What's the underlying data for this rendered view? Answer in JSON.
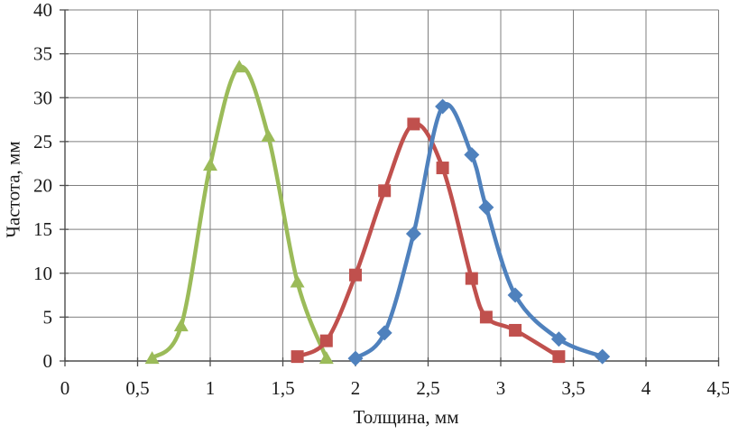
{
  "chart_data": {
    "type": "line",
    "title": "",
    "xlabel": "Толщина, мм",
    "ylabel": "Частота, мм",
    "xlim": [
      0,
      4.5
    ],
    "ylim": [
      0,
      40
    ],
    "grid": true,
    "legend_position": "none",
    "x_ticks": [
      0,
      0.5,
      1,
      1.5,
      2,
      2.5,
      3,
      3.5,
      4,
      4.5
    ],
    "x_tick_labels": [
      "0",
      "0,5",
      "1",
      "1,5",
      "2",
      "2,5",
      "3",
      "3,5",
      "4",
      "4,5"
    ],
    "y_ticks": [
      0,
      5,
      10,
      15,
      20,
      25,
      30,
      35,
      40
    ],
    "y_tick_labels": [
      "0",
      "5",
      "10",
      "15",
      "20",
      "25",
      "30",
      "35",
      "40"
    ],
    "colors": {
      "grid": "#7f7f7f",
      "axis": "#4d4d4d",
      "text": "#1a1a1a",
      "series_green": "#9BBB59",
      "series_red": "#C0504D",
      "series_blue": "#4F81BD"
    },
    "series": [
      {
        "name": "series-green-triangle",
        "marker": "triangle",
        "color": "#9BBB59",
        "smooth": true,
        "points": [
          [
            0.6,
            0.3
          ],
          [
            0.8,
            4.0
          ],
          [
            1.0,
            22.3
          ],
          [
            1.2,
            33.5
          ],
          [
            1.4,
            25.6
          ],
          [
            1.6,
            9.0
          ],
          [
            1.8,
            0.3
          ]
        ]
      },
      {
        "name": "series-red-square",
        "marker": "square",
        "color": "#C0504D",
        "smooth": true,
        "points": [
          [
            1.6,
            0.5
          ],
          [
            1.8,
            2.3
          ],
          [
            2.0,
            9.8
          ],
          [
            2.2,
            19.4
          ],
          [
            2.4,
            27.0
          ],
          [
            2.6,
            22.0
          ],
          [
            2.8,
            9.4
          ],
          [
            2.9,
            5.0
          ],
          [
            3.1,
            3.5
          ],
          [
            3.4,
            0.5
          ]
        ]
      },
      {
        "name": "series-blue-diamond",
        "marker": "diamond",
        "color": "#4F81BD",
        "smooth": true,
        "points": [
          [
            2.0,
            0.3
          ],
          [
            2.2,
            3.2
          ],
          [
            2.4,
            14.5
          ],
          [
            2.6,
            29.0
          ],
          [
            2.8,
            23.5
          ],
          [
            2.9,
            17.5
          ],
          [
            3.1,
            7.5
          ],
          [
            3.4,
            2.5
          ],
          [
            3.7,
            0.5
          ]
        ]
      }
    ]
  }
}
